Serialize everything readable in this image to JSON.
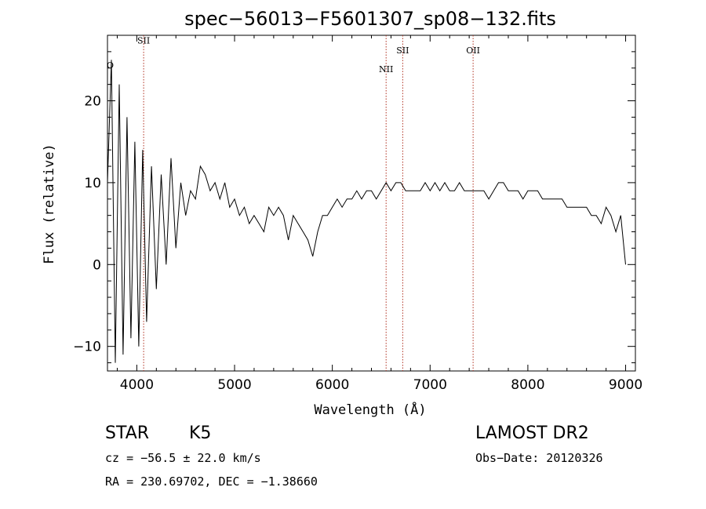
{
  "chart_data": {
    "type": "line",
    "title": "spec−56013−F5601307_sp08−132.fits",
    "xlabel": "Wavelength (Å)",
    "ylabel": "Flux (relative)",
    "xlim": [
      3700,
      9100
    ],
    "ylim": [
      -13,
      28
    ],
    "x_ticks": [
      4000,
      5000,
      6000,
      7000,
      8000,
      9000
    ],
    "x_tick_labels": [
      "4000",
      "5000",
      "6000",
      "7000",
      "8000",
      "9000"
    ],
    "y_ticks": [
      -10,
      0,
      10,
      20
    ],
    "y_tick_labels": [
      "−10",
      "0",
      "10",
      "20"
    ],
    "grid": false,
    "series": [
      {
        "name": "flux",
        "color": "#000000",
        "x": [
          3700,
          3740,
          3780,
          3820,
          3860,
          3900,
          3940,
          3980,
          4020,
          4060,
          4100,
          4150,
          4200,
          4250,
          4300,
          4350,
          4400,
          4450,
          4500,
          4550,
          4600,
          4650,
          4700,
          4750,
          4800,
          4850,
          4900,
          4950,
          5000,
          5050,
          5100,
          5150,
          5200,
          5250,
          5300,
          5350,
          5400,
          5450,
          5500,
          5550,
          5600,
          5650,
          5700,
          5750,
          5800,
          5850,
          5900,
          5950,
          6000,
          6050,
          6100,
          6150,
          6200,
          6250,
          6300,
          6350,
          6400,
          6450,
          6500,
          6550,
          6600,
          6650,
          6700,
          6750,
          6800,
          6850,
          6900,
          6950,
          7000,
          7050,
          7100,
          7150,
          7200,
          7250,
          7300,
          7350,
          7400,
          7450,
          7500,
          7550,
          7600,
          7650,
          7700,
          7750,
          7800,
          7850,
          7900,
          7950,
          8000,
          8050,
          8100,
          8150,
          8200,
          8250,
          8300,
          8350,
          8400,
          8450,
          8500,
          8550,
          8600,
          8650,
          8700,
          8750,
          8800,
          8850,
          8900,
          8950,
          9000
        ],
        "y": [
          10,
          25,
          -12,
          22,
          -11,
          18,
          -9,
          15,
          -10,
          14,
          -7,
          12,
          -3,
          11,
          0,
          13,
          2,
          10,
          6,
          9,
          8,
          12,
          11,
          9,
          10,
          8,
          10,
          7,
          8,
          6,
          7,
          5,
          6,
          5,
          4,
          7,
          6,
          7,
          6,
          3,
          6,
          5,
          4,
          3,
          1,
          4,
          6,
          6,
          7,
          8,
          7,
          8,
          8,
          9,
          8,
          9,
          9,
          8,
          9,
          10,
          9,
          10,
          10,
          9,
          9,
          9,
          9,
          10,
          9,
          10,
          9,
          10,
          9,
          9,
          10,
          9,
          9,
          9,
          9,
          9,
          8,
          9,
          10,
          10,
          9,
          9,
          9,
          8,
          9,
          9,
          9,
          8,
          8,
          8,
          8,
          8,
          7,
          7,
          7,
          7,
          7,
          6,
          6,
          5,
          7,
          6,
          4,
          6,
          0
        ]
      }
    ],
    "annotations": [
      {
        "label": "O",
        "x": 3728,
        "y": 24,
        "line": false
      },
      {
        "label": "SII",
        "x": 4070,
        "y": 27,
        "line": true
      },
      {
        "label": "NII",
        "x": 6550,
        "y": 23.5,
        "line": true
      },
      {
        "label": "SII",
        "x": 6720,
        "y": 25.8,
        "line": true
      },
      {
        "label": "OII",
        "x": 7440,
        "y": 25.8,
        "line": true
      }
    ]
  },
  "info": {
    "class_label": "STAR",
    "subclass": "K5",
    "survey": "LAMOST DR2",
    "redshift": "cz = −56.5 ± 22.0 km/s",
    "obs_date": "Obs−Date: 20120326",
    "coords": "RA = 230.69702, DEC =  −1.38660"
  }
}
